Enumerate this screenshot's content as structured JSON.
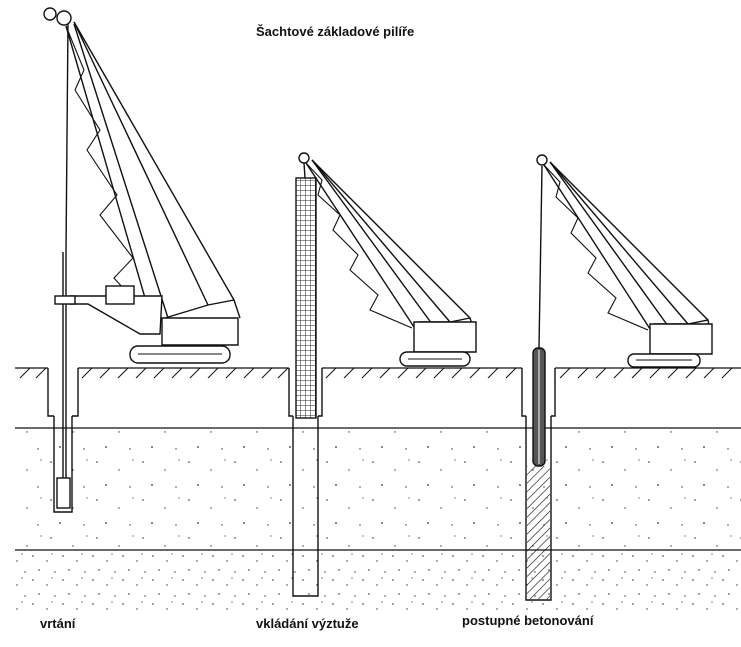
{
  "title": "Šachtové základové pilíře",
  "captions": {
    "drilling": "vrtání",
    "reinforcement": "vkládání výztuže",
    "concreting": "postupné betonování"
  },
  "colors": {
    "line": "#111111",
    "background": "#ffffff",
    "concrete_fill": "#555555"
  }
}
